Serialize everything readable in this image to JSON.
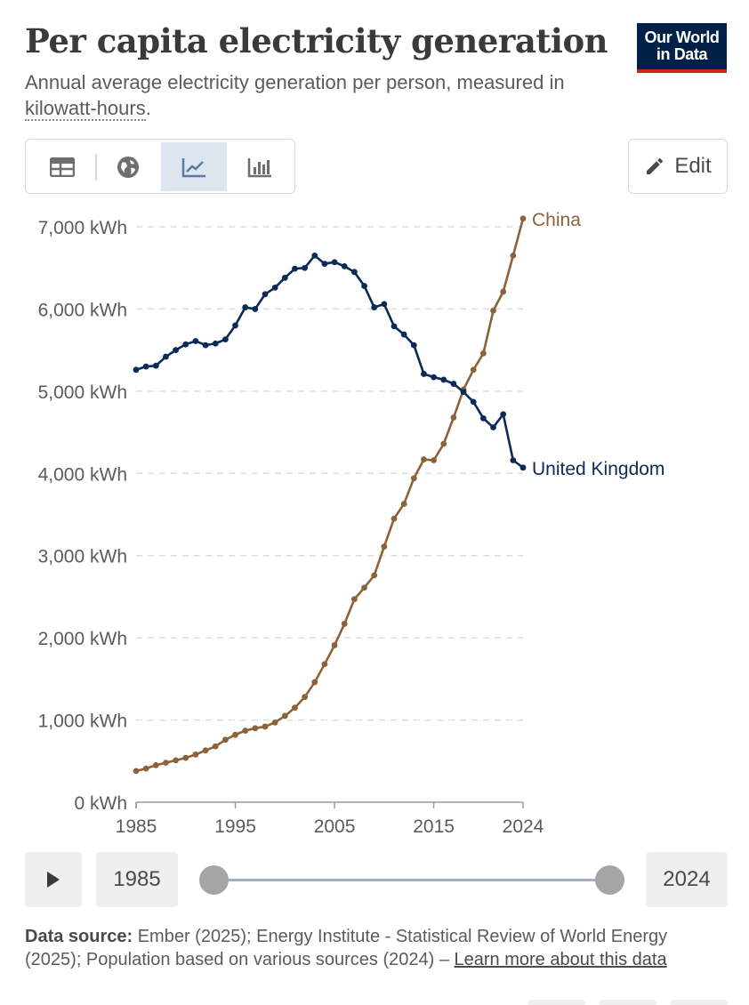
{
  "header": {
    "title": "Per capita electricity generation",
    "subtitle_part1": "Annual average electricity generation per person, measured in ",
    "subtitle_link": "kilowatt-hours",
    "subtitle_end": ".",
    "logo_line1": "Our World",
    "logo_line2": "in Data"
  },
  "toolbar": {
    "tabs": [
      "table",
      "map",
      "chart",
      "bar-chart"
    ],
    "active_tab": "chart",
    "edit_label": "Edit"
  },
  "timeline": {
    "start_year": "1985",
    "end_year": "2024"
  },
  "source": {
    "label": "Data source:",
    "text": "Ember (2025); Energy Institute - Statistical Review of World Energy (2025); Population based on various sources (2024) – ",
    "link": "Learn more about this data"
  },
  "colors": {
    "china": "#8c6239",
    "uk": "#0b2a57",
    "grid": "#dddddd",
    "text": "#5b5b5b"
  },
  "chart_data": {
    "type": "line",
    "title": "Per capita electricity generation",
    "ylabel": "",
    "xlabel": "",
    "ylim": [
      0,
      7000
    ],
    "xlim": [
      1985,
      2024
    ],
    "y_ticks": [
      "0 kWh",
      "1,000 kWh",
      "2,000 kWh",
      "3,000 kWh",
      "4,000 kWh",
      "5,000 kWh",
      "6,000 kWh",
      "7,000 kWh"
    ],
    "y_tick_values": [
      0,
      1000,
      2000,
      3000,
      4000,
      5000,
      6000,
      7000
    ],
    "x_ticks": [
      "1985",
      "1995",
      "2005",
      "2015",
      "2024"
    ],
    "x_tick_values": [
      1985,
      1995,
      2005,
      2015,
      2024
    ],
    "grid": "horizontal dashed",
    "legend": "line-end labels",
    "x": [
      1985,
      1986,
      1987,
      1988,
      1989,
      1990,
      1991,
      1992,
      1993,
      1994,
      1995,
      1996,
      1997,
      1998,
      1999,
      2000,
      2001,
      2002,
      2003,
      2004,
      2005,
      2006,
      2007,
      2008,
      2009,
      2010,
      2011,
      2012,
      2013,
      2014,
      2015,
      2016,
      2017,
      2018,
      2019,
      2020,
      2021,
      2022,
      2023,
      2024
    ],
    "series": [
      {
        "name": "China",
        "color": "#8c6239",
        "values": [
          380,
          410,
          450,
          480,
          510,
          540,
          580,
          630,
          680,
          760,
          820,
          870,
          900,
          920,
          970,
          1050,
          1150,
          1280,
          1460,
          1680,
          1910,
          2170,
          2470,
          2610,
          2760,
          3110,
          3450,
          3630,
          3940,
          4170,
          4160,
          4360,
          4680,
          5020,
          5260,
          5460,
          5980,
          6210,
          6650,
          7100
        ]
      },
      {
        "name": "United Kingdom",
        "color": "#0b2a57",
        "values": [
          5260,
          5300,
          5310,
          5420,
          5500,
          5570,
          5610,
          5560,
          5580,
          5630,
          5800,
          6020,
          6000,
          6180,
          6260,
          6380,
          6490,
          6500,
          6650,
          6550,
          6570,
          6520,
          6450,
          6280,
          6020,
          6060,
          5790,
          5690,
          5560,
          5210,
          5170,
          5140,
          5090,
          4990,
          4870,
          4670,
          4560,
          4720,
          4160,
          4070
        ]
      }
    ]
  }
}
